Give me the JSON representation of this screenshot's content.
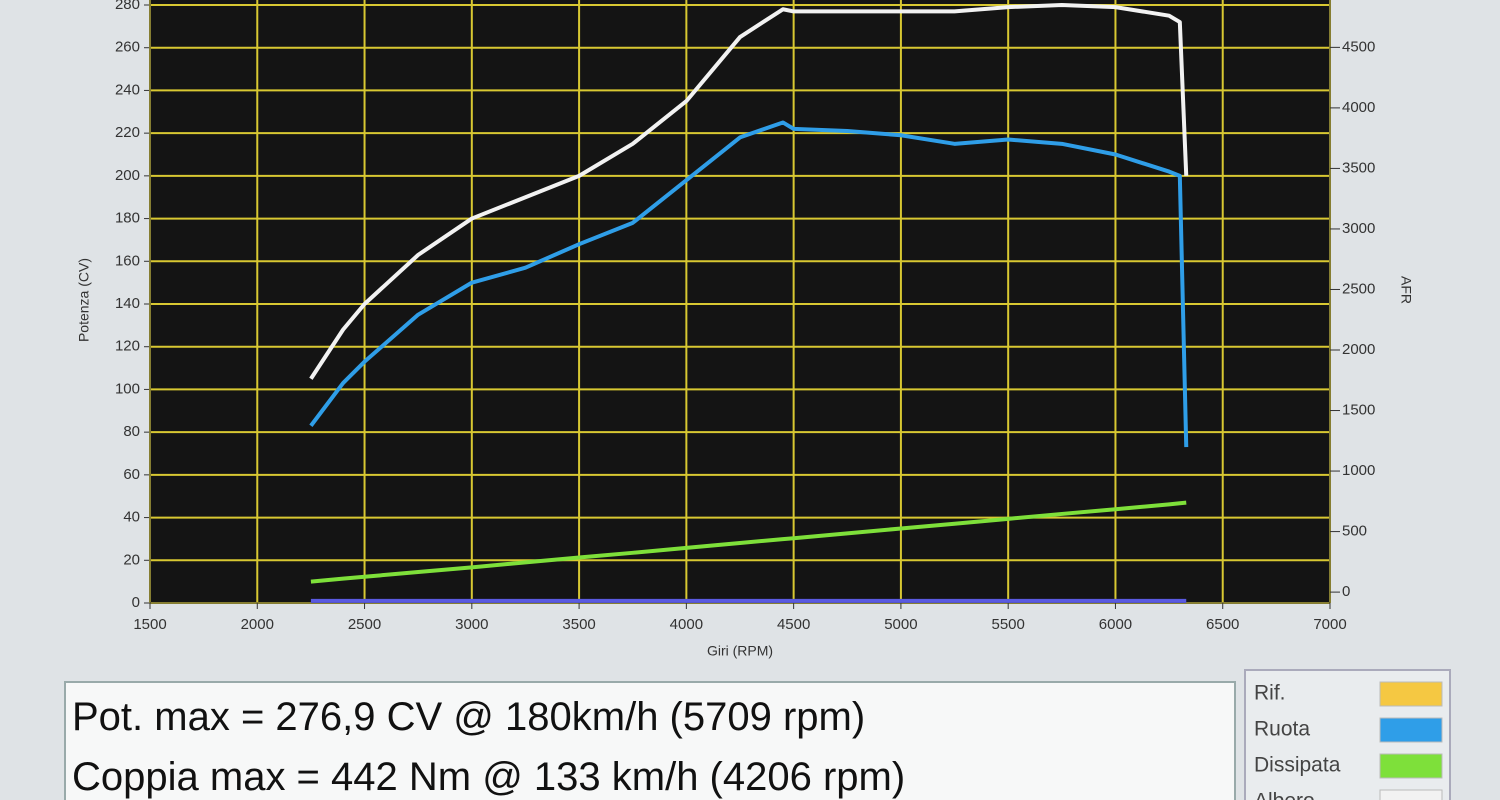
{
  "chart_data": {
    "type": "line",
    "x_label": "Giri (RPM)",
    "y_label": "Potenza (CV)",
    "y2_label": "AFR",
    "xlim": [
      1500,
      7000
    ],
    "xticks": [
      1500,
      2000,
      2500,
      3000,
      3500,
      4000,
      4500,
      5000,
      5500,
      6000,
      6500,
      7000
    ],
    "ylim": [
      0,
      280
    ],
    "yticks": [
      0,
      20,
      40,
      60,
      80,
      100,
      120,
      140,
      160,
      180,
      200,
      220,
      240,
      260,
      280
    ],
    "y2lim": [
      -90,
      4850
    ],
    "y2ticks": [
      0,
      500,
      1000,
      1500,
      2000,
      2500,
      3000,
      3500,
      4000,
      4500
    ],
    "grid": true,
    "x": [
      2250,
      2400,
      2500,
      2750,
      3000,
      3250,
      3500,
      3750,
      4000,
      4250,
      4450,
      4500,
      4750,
      5000,
      5250,
      5500,
      5750,
      6000,
      6250,
      6300,
      6330
    ],
    "series": [
      {
        "name": "Rif.",
        "color": "#f5c842",
        "values": [
          null,
          null,
          null,
          null,
          null,
          null,
          null,
          null,
          null,
          null,
          null,
          null,
          null,
          null,
          null,
          null,
          null,
          null,
          null,
          null,
          null
        ]
      },
      {
        "name": "Ruota",
        "color": "#2f9ee8",
        "values": [
          83,
          103,
          113,
          135,
          150,
          157,
          168,
          178,
          198,
          218,
          225,
          222,
          221,
          219,
          215,
          217,
          215,
          210,
          202,
          200,
          73
        ]
      },
      {
        "name": "Dissipata",
        "color": "#7ee03a",
        "values": [
          10,
          11.4,
          12.3,
          14.5,
          16.7,
          19,
          21.3,
          23.5,
          25.8,
          28.1,
          29.9,
          30.3,
          32.6,
          34.9,
          37.1,
          39.4,
          41.7,
          43.9,
          46.2,
          46.7,
          47
        ]
      },
      {
        "name": "Albero",
        "color": "#f2f2f2",
        "values": [
          105,
          128,
          140,
          163,
          180,
          190,
          200,
          215,
          235,
          265,
          278,
          277,
          277,
          277,
          277,
          279,
          280,
          279,
          275,
          272,
          200
        ]
      },
      {
        "color": "#5a5ae0",
        "values": [
          1,
          1,
          1,
          1,
          1,
          1,
          1,
          1,
          1,
          1,
          1,
          1,
          1,
          1,
          1,
          1,
          1,
          1,
          1,
          1,
          1
        ]
      }
    ],
    "annotations": [
      "Pot. max = 276,9 CV @ 180km/h (5709 rpm)",
      "Coppia max = 442 Nm @ 133 km/h (4206 rpm)"
    ]
  }
}
